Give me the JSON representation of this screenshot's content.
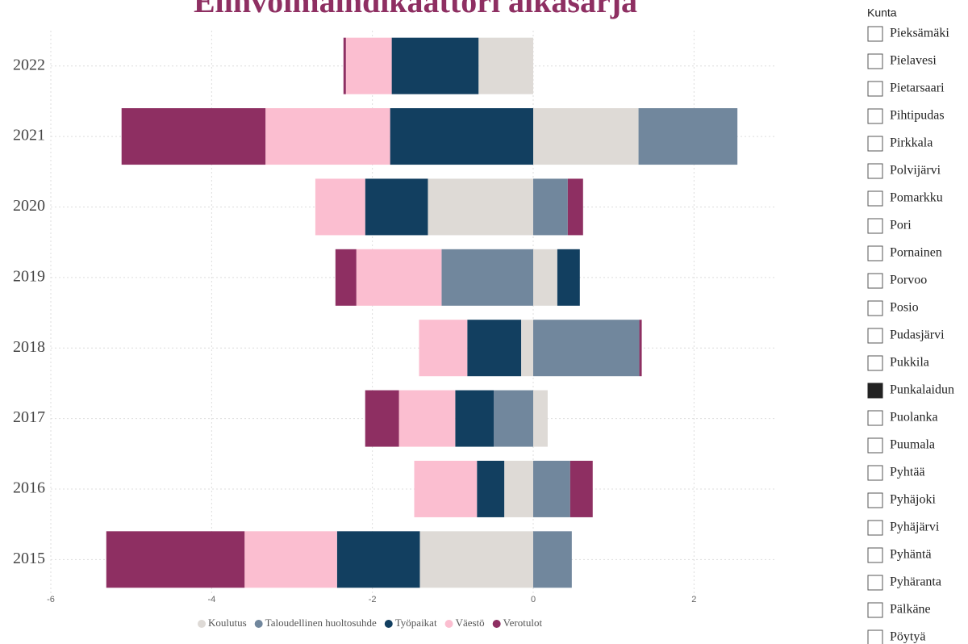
{
  "chart_data": {
    "type": "diverging-stacked-bar",
    "title": "Elinvoimaindikaattori aikasarja",
    "categories": [
      "2022",
      "2021",
      "2020",
      "2019",
      "2018",
      "2017",
      "2016",
      "2015"
    ],
    "series": [
      {
        "name": "Koulutus",
        "color": "#dedad6",
        "values": [
          -0.68,
          1.31,
          -1.31,
          0.3,
          -0.15,
          0.18,
          -0.36,
          -1.41
        ]
      },
      {
        "name": "Taloudellinen huoltosuhde",
        "color": "#71879d",
        "values": [
          0,
          1.23,
          0.43,
          -1.14,
          1.32,
          -0.49,
          0.46,
          0.48
        ]
      },
      {
        "name": "Työpaikat",
        "color": "#123f60",
        "values": [
          -1.08,
          -1.78,
          -0.78,
          0.28,
          -0.67,
          -0.48,
          -0.34,
          -1.03
        ]
      },
      {
        "name": "Väestö",
        "color": "#fbbed0",
        "values": [
          -0.57,
          -1.55,
          -0.62,
          -1.06,
          -0.6,
          -0.7,
          -0.78,
          -1.15
        ]
      },
      {
        "name": "Verotulot",
        "color": "#8e2f62",
        "values": [
          -0.03,
          -1.79,
          0.19,
          -0.26,
          0.03,
          -0.42,
          0.28,
          -1.72
        ]
      }
    ],
    "xlim": [
      -6,
      3
    ],
    "xticks": [
      -6,
      -4,
      -2,
      0,
      2
    ],
    "grid": true,
    "legend": "bottom"
  },
  "slicer": {
    "title": "Kunta",
    "items": [
      "Pieksämäki",
      "Pielavesi",
      "Pietarsaari",
      "Pihtipudas",
      "Pirkkala",
      "Polvijärvi",
      "Pomarkku",
      "Pori",
      "Pornainen",
      "Porvoo",
      "Posio",
      "Pudasjärvi",
      "Pukkila",
      "Punkalaidun",
      "Puolanka",
      "Puumala",
      "Pyhtää",
      "Pyhäjoki",
      "Pyhäjärvi",
      "Pyhäntä",
      "Pyhäranta",
      "Pälkäne",
      "Pöytyä"
    ],
    "selected": "Punkalaidun"
  }
}
